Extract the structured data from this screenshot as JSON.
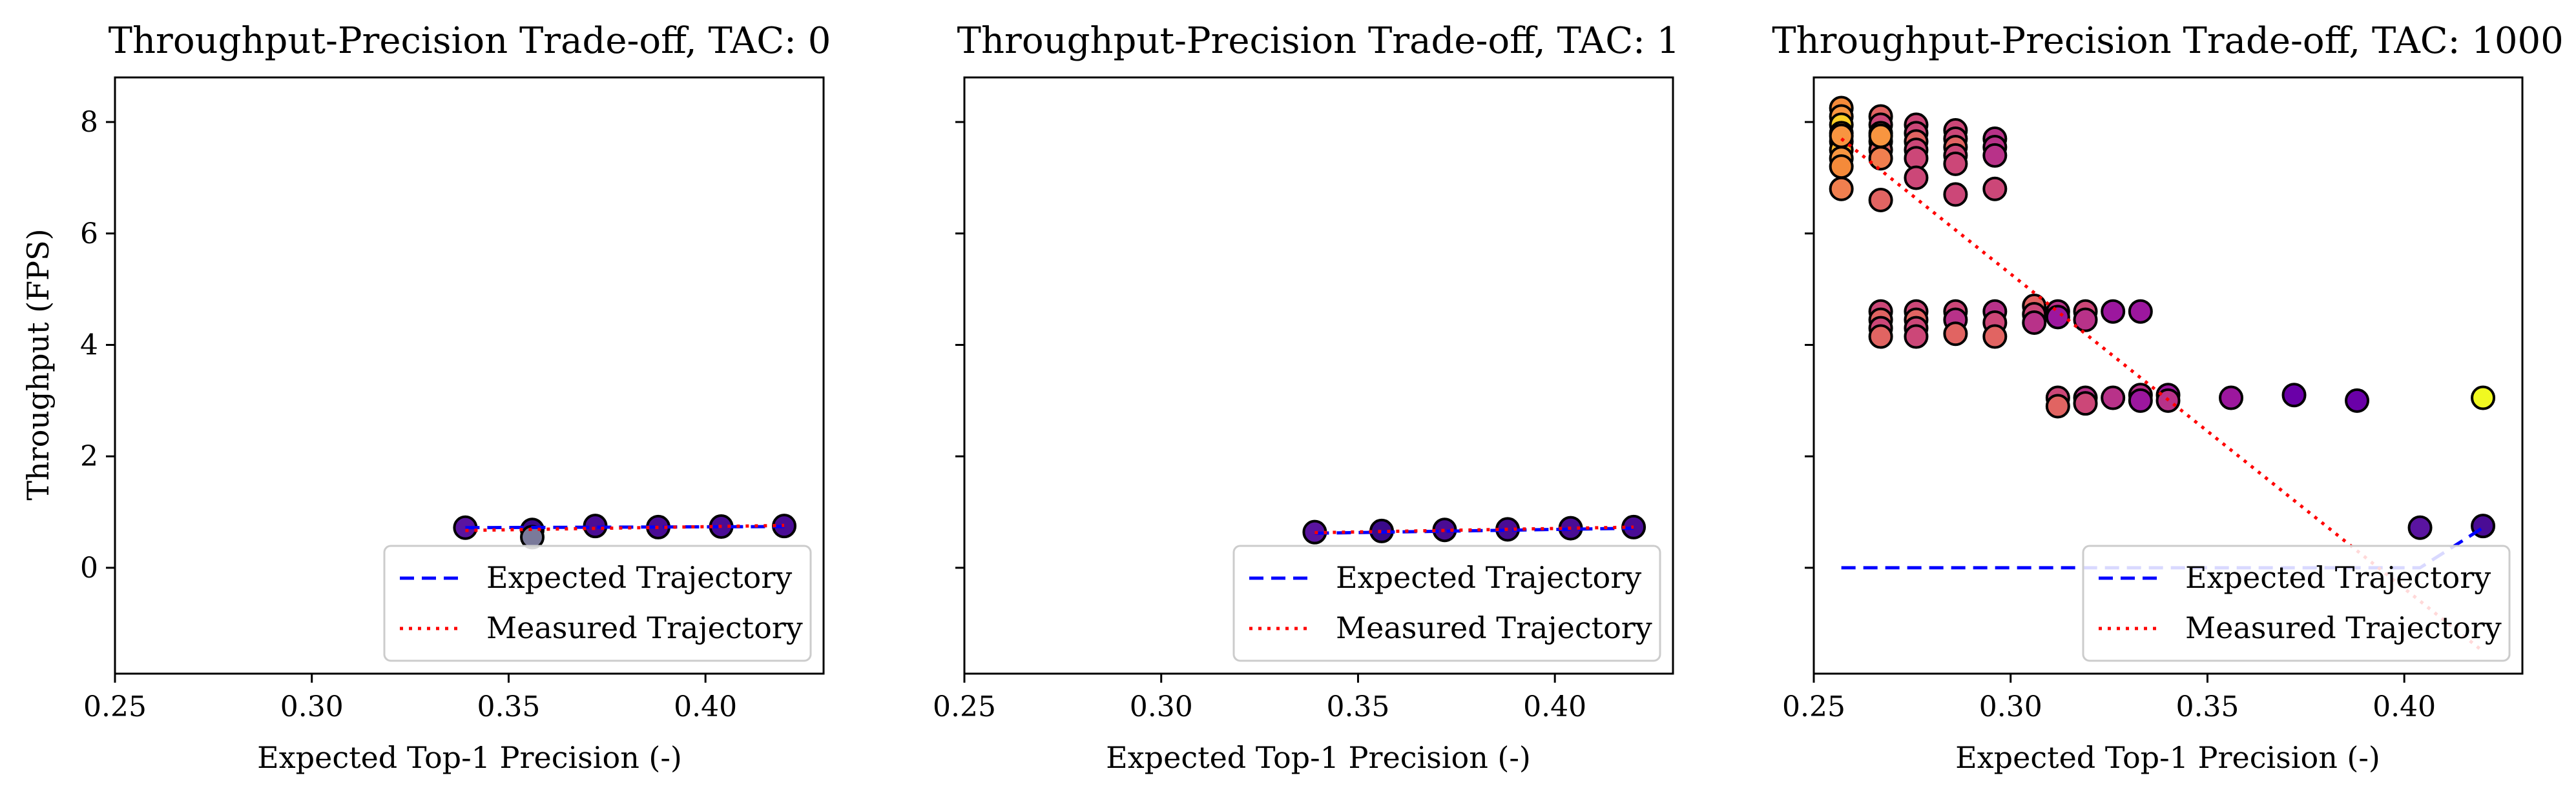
{
  "chart_data": [
    {
      "type": "scatter",
      "title": "Throughput-Precision Trade-off, TAC: 0",
      "xlabel": "Expected Top-1 Precision (-)",
      "ylabel": "Throughput (FPS)",
      "xlim": [
        0.25,
        0.43
      ],
      "ylim": [
        -1.9,
        8.8
      ],
      "x_ticks": [
        0.25,
        0.3,
        0.35,
        0.4
      ],
      "x_tick_labels": [
        "0.25",
        "0.30",
        "0.35",
        "0.40"
      ],
      "y_ticks": [
        0,
        2,
        4,
        6,
        8
      ],
      "y_tick_labels": [
        "0",
        "2",
        "4",
        "6",
        "8"
      ],
      "show_y_tick_labels": true,
      "grid": false,
      "legend_position": "lower-right",
      "legend": [
        {
          "label": "Expected Trajectory",
          "style": "dashed",
          "color": "#0000ff"
        },
        {
          "label": "Measured Trajectory",
          "style": "dotted",
          "color": "#ff0000"
        }
      ],
      "points": [
        {
          "x": 0.339,
          "y": 0.72,
          "color": "#5a14a0"
        },
        {
          "x": 0.356,
          "y": 0.68,
          "color": "#3a0a8a"
        },
        {
          "x": 0.356,
          "y": 0.55,
          "color": "#7a7a9a"
        },
        {
          "x": 0.372,
          "y": 0.75,
          "color": "#4a0c95"
        },
        {
          "x": 0.388,
          "y": 0.73,
          "color": "#4a0c95"
        },
        {
          "x": 0.404,
          "y": 0.74,
          "color": "#4a0c95"
        },
        {
          "x": 0.42,
          "y": 0.75,
          "color": "#4a0c95"
        }
      ],
      "expected_trajectory": {
        "x": [
          0.339,
          0.42
        ],
        "y": [
          0.72,
          0.74
        ]
      },
      "measured_trajectory": {
        "x": [
          0.339,
          0.42
        ],
        "y": [
          0.67,
          0.76
        ]
      }
    },
    {
      "type": "scatter",
      "title": "Throughput-Precision Trade-off, TAC: 1",
      "xlabel": "Expected Top-1 Precision (-)",
      "ylabel": "",
      "xlim": [
        0.25,
        0.43
      ],
      "ylim": [
        -1.9,
        8.8
      ],
      "x_ticks": [
        0.25,
        0.3,
        0.35,
        0.4
      ],
      "x_tick_labels": [
        "0.25",
        "0.30",
        "0.35",
        "0.40"
      ],
      "y_ticks": [
        0,
        2,
        4,
        6,
        8
      ],
      "y_tick_labels": [
        "0",
        "2",
        "4",
        "6",
        "8"
      ],
      "show_y_tick_labels": false,
      "grid": false,
      "legend_position": "lower-right",
      "legend": [
        {
          "label": "Expected Trajectory",
          "style": "dashed",
          "color": "#0000ff"
        },
        {
          "label": "Measured Trajectory",
          "style": "dotted",
          "color": "#ff0000"
        }
      ],
      "points": [
        {
          "x": 0.339,
          "y": 0.64,
          "color": "#5a14a0"
        },
        {
          "x": 0.356,
          "y": 0.66,
          "color": "#3a0a8a"
        },
        {
          "x": 0.372,
          "y": 0.68,
          "color": "#4a0c95"
        },
        {
          "x": 0.388,
          "y": 0.69,
          "color": "#4a0c95"
        },
        {
          "x": 0.404,
          "y": 0.71,
          "color": "#4a0c95"
        },
        {
          "x": 0.42,
          "y": 0.73,
          "color": "#4a0c95"
        }
      ],
      "expected_trajectory": {
        "x": [
          0.339,
          0.42
        ],
        "y": [
          0.62,
          0.71
        ]
      },
      "measured_trajectory": {
        "x": [
          0.339,
          0.42
        ],
        "y": [
          0.63,
          0.73
        ]
      }
    },
    {
      "type": "scatter",
      "title": "Throughput-Precision Trade-off, TAC: 1000",
      "xlabel": "Expected Top-1 Precision (-)",
      "ylabel": "",
      "xlim": [
        0.25,
        0.43
      ],
      "ylim": [
        -1.9,
        8.8
      ],
      "x_ticks": [
        0.25,
        0.3,
        0.35,
        0.4
      ],
      "x_tick_labels": [
        "0.25",
        "0.30",
        "0.35",
        "0.40"
      ],
      "y_ticks": [
        0,
        2,
        4,
        6,
        8
      ],
      "y_tick_labels": [
        "0",
        "2",
        "4",
        "6",
        "8"
      ],
      "show_y_tick_labels": false,
      "grid": false,
      "legend_position": "lower-right",
      "legend": [
        {
          "label": "Expected Trajectory",
          "style": "dashed",
          "color": "#0000ff"
        },
        {
          "label": "Measured Trajectory",
          "style": "dotted",
          "color": "#ff0000"
        }
      ],
      "points": [
        {
          "x": 0.257,
          "y": 8.25,
          "color": "#f48a3a"
        },
        {
          "x": 0.257,
          "y": 8.1,
          "color": "#f89540"
        },
        {
          "x": 0.257,
          "y": 7.95,
          "color": "#fcce25"
        },
        {
          "x": 0.257,
          "y": 7.8,
          "color": "#fba238"
        },
        {
          "x": 0.257,
          "y": 7.65,
          "color": "#f48a3a"
        },
        {
          "x": 0.257,
          "y": 7.5,
          "color": "#fdb52e"
        },
        {
          "x": 0.257,
          "y": 7.35,
          "color": "#f89540"
        },
        {
          "x": 0.257,
          "y": 7.2,
          "color": "#f48a3a"
        },
        {
          "x": 0.257,
          "y": 6.8,
          "color": "#f07f4f"
        },
        {
          "x": 0.257,
          "y": 7.75,
          "color": "#f89540"
        },
        {
          "x": 0.267,
          "y": 8.1,
          "color": "#e16462"
        },
        {
          "x": 0.267,
          "y": 7.95,
          "color": "#cc4778"
        },
        {
          "x": 0.267,
          "y": 7.8,
          "color": "#e16462"
        },
        {
          "x": 0.267,
          "y": 7.65,
          "color": "#f07f4f"
        },
        {
          "x": 0.267,
          "y": 7.5,
          "color": "#e16462"
        },
        {
          "x": 0.267,
          "y": 7.35,
          "color": "#f07f4f"
        },
        {
          "x": 0.267,
          "y": 7.75,
          "color": "#f89540"
        },
        {
          "x": 0.267,
          "y": 6.6,
          "color": "#e16462"
        },
        {
          "x": 0.276,
          "y": 7.95,
          "color": "#cc4778"
        },
        {
          "x": 0.276,
          "y": 7.8,
          "color": "#cc4778"
        },
        {
          "x": 0.276,
          "y": 7.65,
          "color": "#e16462"
        },
        {
          "x": 0.276,
          "y": 7.5,
          "color": "#cc4778"
        },
        {
          "x": 0.276,
          "y": 7.35,
          "color": "#cc4778"
        },
        {
          "x": 0.276,
          "y": 7.0,
          "color": "#cc4778"
        },
        {
          "x": 0.286,
          "y": 7.85,
          "color": "#cc4778"
        },
        {
          "x": 0.286,
          "y": 7.7,
          "color": "#cc4778"
        },
        {
          "x": 0.286,
          "y": 7.55,
          "color": "#e16462"
        },
        {
          "x": 0.286,
          "y": 7.4,
          "color": "#cc4778"
        },
        {
          "x": 0.286,
          "y": 7.25,
          "color": "#cc4778"
        },
        {
          "x": 0.286,
          "y": 6.7,
          "color": "#cc4778"
        },
        {
          "x": 0.296,
          "y": 7.7,
          "color": "#b83289"
        },
        {
          "x": 0.296,
          "y": 7.55,
          "color": "#b83289"
        },
        {
          "x": 0.296,
          "y": 7.4,
          "color": "#b83289"
        },
        {
          "x": 0.296,
          "y": 6.8,
          "color": "#cc4778"
        },
        {
          "x": 0.267,
          "y": 4.6,
          "color": "#cc4778"
        },
        {
          "x": 0.267,
          "y": 4.45,
          "color": "#e16462"
        },
        {
          "x": 0.267,
          "y": 4.3,
          "color": "#cc4778"
        },
        {
          "x": 0.267,
          "y": 4.15,
          "color": "#e16462"
        },
        {
          "x": 0.276,
          "y": 4.6,
          "color": "#cc4778"
        },
        {
          "x": 0.276,
          "y": 4.45,
          "color": "#e16462"
        },
        {
          "x": 0.276,
          "y": 4.3,
          "color": "#cc4778"
        },
        {
          "x": 0.276,
          "y": 4.15,
          "color": "#cc4778"
        },
        {
          "x": 0.286,
          "y": 4.6,
          "color": "#cc4778"
        },
        {
          "x": 0.286,
          "y": 4.45,
          "color": "#b83289"
        },
        {
          "x": 0.286,
          "y": 4.2,
          "color": "#e16462"
        },
        {
          "x": 0.296,
          "y": 4.6,
          "color": "#b83289"
        },
        {
          "x": 0.296,
          "y": 4.4,
          "color": "#cc4778"
        },
        {
          "x": 0.296,
          "y": 4.15,
          "color": "#e16462"
        },
        {
          "x": 0.306,
          "y": 4.7,
          "color": "#e16462"
        },
        {
          "x": 0.306,
          "y": 4.55,
          "color": "#cc4778"
        },
        {
          "x": 0.306,
          "y": 4.4,
          "color": "#b83289"
        },
        {
          "x": 0.312,
          "y": 4.6,
          "color": "#b83289"
        },
        {
          "x": 0.312,
          "y": 4.5,
          "color": "#9c179e"
        },
        {
          "x": 0.319,
          "y": 4.6,
          "color": "#cc4778"
        },
        {
          "x": 0.319,
          "y": 4.45,
          "color": "#b83289"
        },
        {
          "x": 0.326,
          "y": 4.6,
          "color": "#9c179e"
        },
        {
          "x": 0.333,
          "y": 4.6,
          "color": "#9c179e"
        },
        {
          "x": 0.312,
          "y": 3.05,
          "color": "#cc4778"
        },
        {
          "x": 0.312,
          "y": 2.9,
          "color": "#e16462"
        },
        {
          "x": 0.319,
          "y": 3.05,
          "color": "#b83289"
        },
        {
          "x": 0.319,
          "y": 2.95,
          "color": "#cc4778"
        },
        {
          "x": 0.326,
          "y": 3.05,
          "color": "#b83289"
        },
        {
          "x": 0.333,
          "y": 3.1,
          "color": "#b83289"
        },
        {
          "x": 0.333,
          "y": 3.0,
          "color": "#9c179e"
        },
        {
          "x": 0.34,
          "y": 3.1,
          "color": "#9c179e"
        },
        {
          "x": 0.34,
          "y": 3.0,
          "color": "#b83289"
        },
        {
          "x": 0.356,
          "y": 3.05,
          "color": "#9c179e"
        },
        {
          "x": 0.372,
          "y": 3.1,
          "color": "#6a00a8"
        },
        {
          "x": 0.388,
          "y": 3.0,
          "color": "#6a00a8"
        },
        {
          "x": 0.42,
          "y": 3.05,
          "color": "#f0f921"
        },
        {
          "x": 0.404,
          "y": 0.72,
          "color": "#5a14a0"
        },
        {
          "x": 0.42,
          "y": 0.75,
          "color": "#4a0c95"
        }
      ],
      "expected_trajectory": {
        "x": [
          0.257,
          0.404,
          0.42
        ],
        "y": [
          0.0,
          0.0,
          0.72
        ]
      },
      "measured_trajectory": {
        "x": [
          0.257,
          0.42
        ],
        "y": [
          7.7,
          -1.5
        ]
      }
    }
  ]
}
